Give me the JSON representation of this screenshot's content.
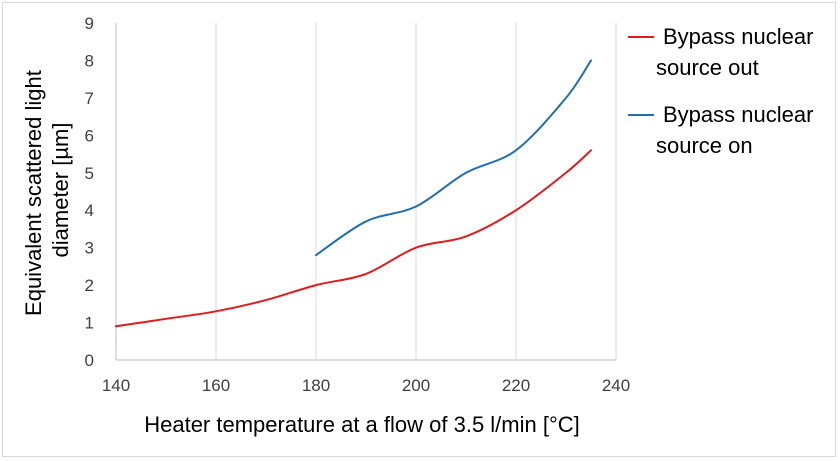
{
  "chart_data": {
    "type": "line",
    "title": "",
    "xlabel": "Heater temperature at a flow of 3.5 l/min [°C]",
    "ylabel_lines": [
      "Equivalent scattered light",
      "diameter [µm]"
    ],
    "xlim": [
      140,
      240
    ],
    "ylim": [
      0,
      9
    ],
    "xticks": [
      140,
      160,
      180,
      200,
      220,
      240
    ],
    "yticks": [
      0,
      1,
      2,
      3,
      4,
      5,
      6,
      7,
      8,
      9
    ],
    "grid": "vertical",
    "legend_position": "right",
    "series": [
      {
        "name": "Bypass nuclear source out",
        "legend_lines": [
          "Bypass nuclear",
          "source out"
        ],
        "color": "#e31a1c",
        "x": [
          140,
          150,
          160,
          170,
          180,
          190,
          200,
          210,
          220,
          230,
          235
        ],
        "y": [
          0.9,
          1.1,
          1.3,
          1.6,
          2.0,
          2.3,
          3.0,
          3.3,
          4.0,
          5.0,
          5.6
        ]
      },
      {
        "name": "Bypass nuclear source on",
        "legend_lines": [
          "Bypass nuclear",
          "source on"
        ],
        "color": "#1f6fb4",
        "x": [
          180,
          190,
          200,
          210,
          220,
          230,
          235
        ],
        "y": [
          2.8,
          3.7,
          4.1,
          5.0,
          5.6,
          7.0,
          8.0
        ]
      }
    ]
  }
}
